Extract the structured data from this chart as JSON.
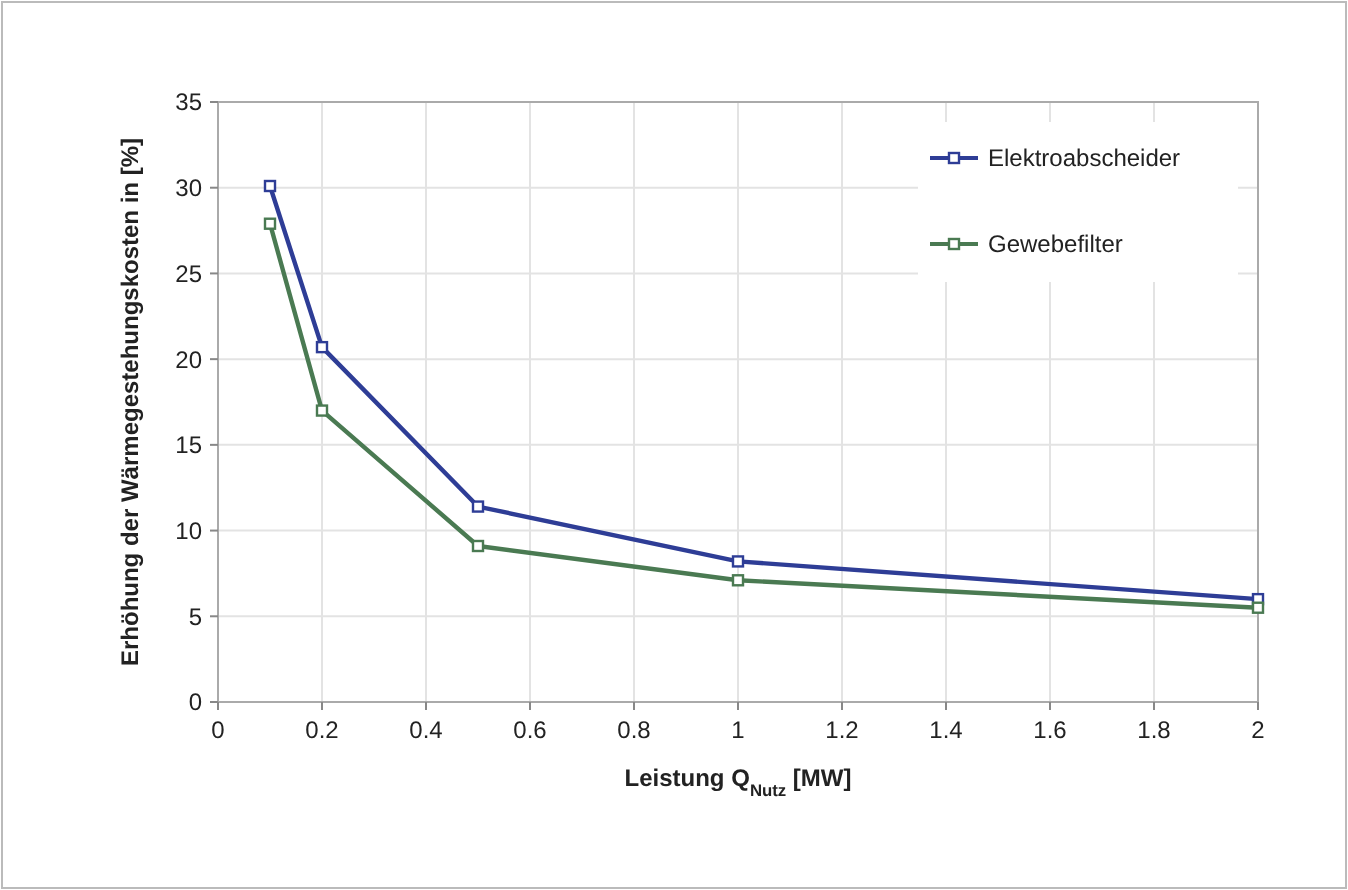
{
  "chart_data": {
    "type": "line",
    "xlabel": "Leistung Q$_{Nutz}$  [MW]",
    "ylabel": "Erhöhung der Wärmegestehungskosten in  [%]",
    "x": [
      0.1,
      0.2,
      0.5,
      1,
      2
    ],
    "series": [
      {
        "name": "Elektroabscheider",
        "color": "#2e3d96",
        "values": [
          30.1,
          20.7,
          11.4,
          8.2,
          6.0
        ]
      },
      {
        "name": "Gewebefilter",
        "color": "#4a7a52",
        "values": [
          27.9,
          17.0,
          9.1,
          7.1,
          5.5
        ]
      }
    ],
    "xlim": [
      0,
      2
    ],
    "xticks": [
      0,
      0.2,
      0.4,
      0.6,
      0.8,
      1,
      1.2,
      1.4,
      1.6,
      1.8,
      2
    ],
    "ylim": [
      0,
      35
    ],
    "yticks": [
      0,
      5,
      10,
      15,
      20,
      25,
      30,
      35
    ],
    "grid": true,
    "legend": "top right",
    "marker": "square",
    "line_style": "solid"
  }
}
